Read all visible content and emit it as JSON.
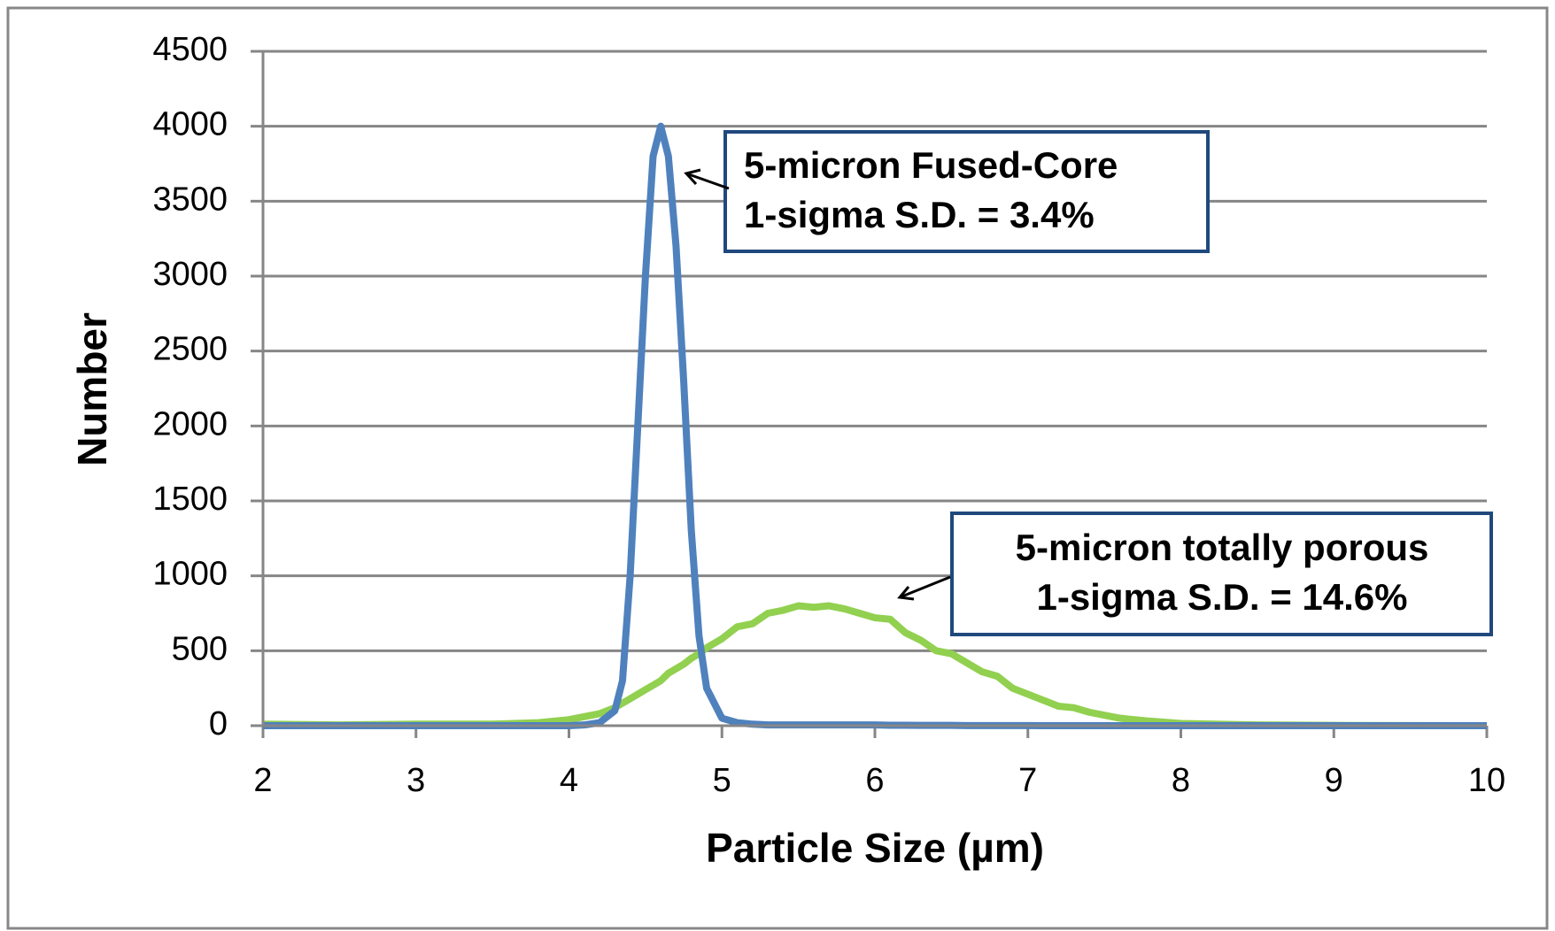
{
  "chart_data": {
    "type": "line",
    "x_label": "Particle Size (µm)",
    "y_label": "Number",
    "xlim": [
      2,
      10
    ],
    "xticks": [
      2,
      3,
      4,
      5,
      6,
      7,
      8,
      9,
      10
    ],
    "ylim": [
      0,
      4500
    ],
    "yticks": [
      0,
      500,
      1000,
      1500,
      2000,
      2500,
      3000,
      3500,
      4000,
      4500
    ],
    "grid": true,
    "x": [
      2,
      2.5,
      3,
      3.5,
      3.8,
      4,
      4.1,
      4.2,
      4.3,
      4.35,
      4.4,
      4.45,
      4.5,
      4.55,
      4.6,
      4.65,
      4.7,
      4.75,
      4.8,
      4.85,
      4.9,
      5,
      5.1,
      5.2,
      5.3,
      5.4,
      5.5,
      5.6,
      5.7,
      5.8,
      5.9,
      6,
      6.1,
      6.2,
      6.3,
      6.4,
      6.5,
      6.6,
      6.7,
      6.8,
      6.9,
      7,
      7.1,
      7.2,
      7.3,
      7.4,
      7.6,
      7.8,
      8,
      8.5,
      9,
      10
    ],
    "series": [
      {
        "color": "#4f81bd",
        "values": [
          0,
          0,
          0,
          0,
          0,
          0,
          5,
          20,
          100,
          300,
          1000,
          2000,
          3000,
          3800,
          4000,
          3800,
          3200,
          2300,
          1300,
          600,
          250,
          50,
          20,
          10,
          5,
          5,
          5,
          5,
          5,
          5,
          5,
          5,
          3,
          3,
          2,
          2,
          2,
          1,
          1,
          1,
          1,
          1,
          0,
          0,
          0,
          0,
          0,
          0,
          0,
          0,
          0,
          0
        ]
      },
      {
        "color": "#92d050",
        "values": [
          10,
          5,
          10,
          10,
          20,
          40,
          60,
          80,
          120,
          150,
          180,
          210,
          240,
          270,
          300,
          350,
          380,
          410,
          450,
          480,
          520,
          580,
          660,
          680,
          750,
          770,
          800,
          790,
          800,
          780,
          750,
          720,
          710,
          620,
          570,
          500,
          480,
          420,
          360,
          330,
          250,
          210,
          170,
          130,
          120,
          90,
          50,
          30,
          15,
          5,
          2,
          0
        ]
      }
    ],
    "annotations": [
      {
        "lines": [
          "5-micron Fused-Core",
          "1-sigma S.D. = 3.4%"
        ]
      },
      {
        "lines": [
          "5-micron totally porous",
          "1-sigma S.D. = 14.6%"
        ]
      }
    ]
  }
}
